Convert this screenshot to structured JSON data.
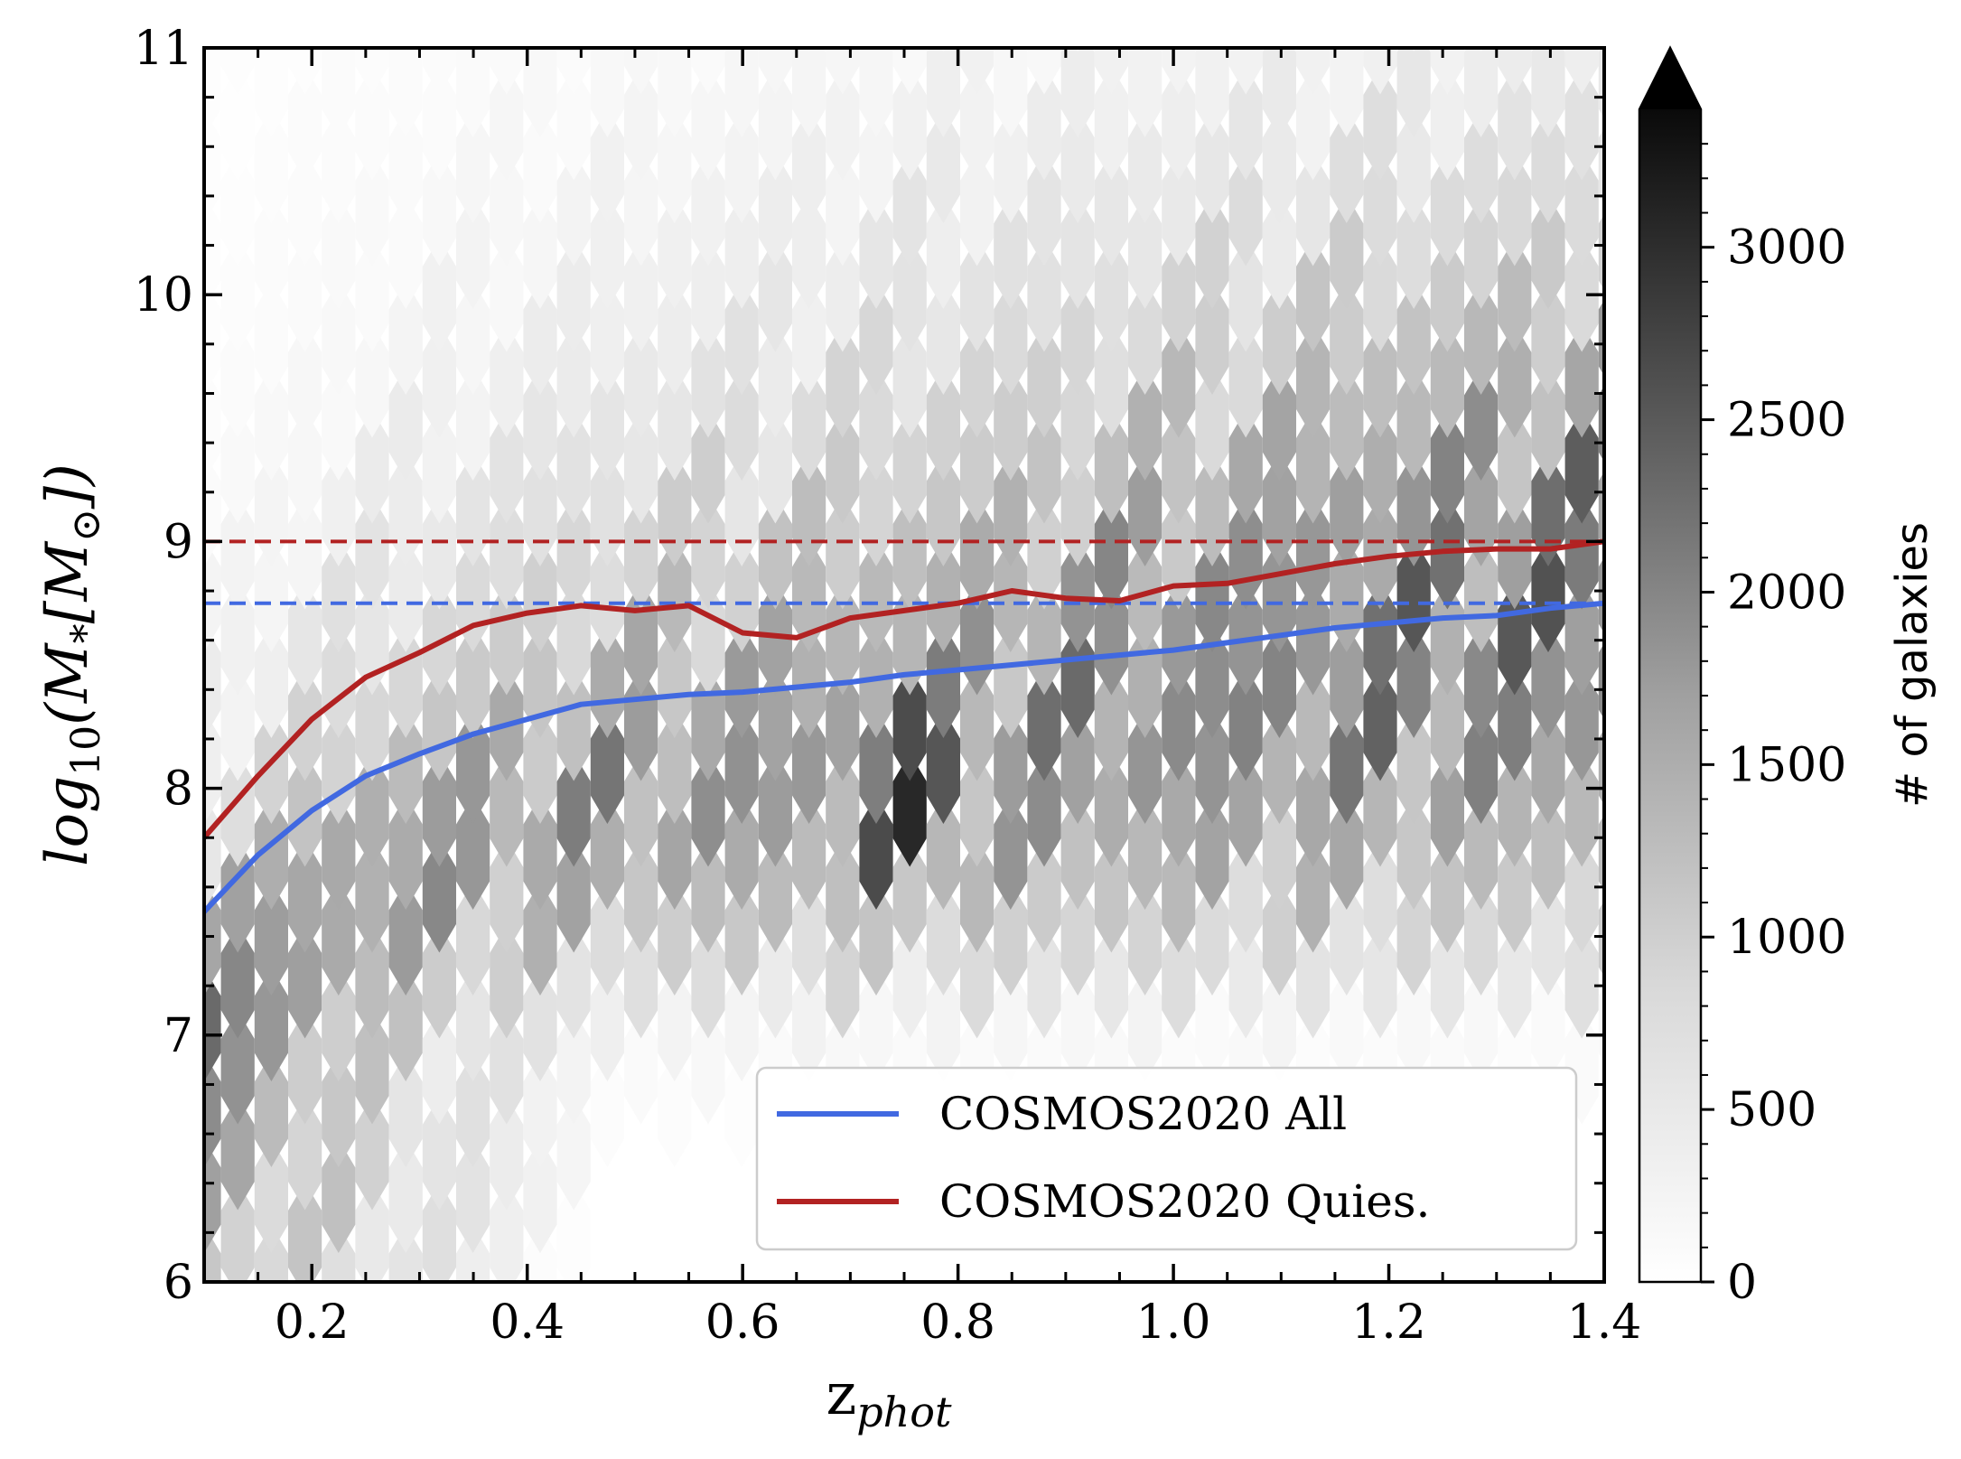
{
  "chart_data": {
    "type": "heatmap",
    "subtype": "hexbin",
    "title": "",
    "xlabel": "z",
    "xlabel_subscript": "phot",
    "ylabel_prefix": "log",
    "ylabel_sub1": "10",
    "ylabel_mid": "(M",
    "ylabel_sub2": "*",
    "ylabel_mid2": "[M",
    "ylabel_sub3": "⊙",
    "ylabel_suffix": "])",
    "xlim": [
      0.1,
      1.4
    ],
    "ylim": [
      6,
      11
    ],
    "x_ticks": [
      "0.2",
      "0.4",
      "0.6",
      "0.8",
      "1.0",
      "1.2",
      "1.4"
    ],
    "x_tick_values": [
      0.2,
      0.4,
      0.6,
      0.8,
      1.0,
      1.2,
      1.4
    ],
    "y_ticks": [
      "6",
      "7",
      "8",
      "9",
      "10",
      "11"
    ],
    "y_tick_values": [
      6,
      7,
      8,
      9,
      10,
      11
    ],
    "colorbar": {
      "label": "# of galaxies",
      "range": [
        0,
        3400
      ],
      "extend": "max",
      "ticks": [
        "0",
        "500",
        "1000",
        "1500",
        "2000",
        "2500",
        "3000"
      ],
      "tick_values": [
        0,
        500,
        1000,
        1500,
        2000,
        2500,
        3000
      ],
      "cmap": "Greys"
    },
    "series": [
      {
        "name": "COSMOS2020 All",
        "color": "#4169e1",
        "style": "solid",
        "x": [
          0.1,
          0.15,
          0.2,
          0.25,
          0.3,
          0.35,
          0.4,
          0.45,
          0.5,
          0.55,
          0.6,
          0.65,
          0.7,
          0.75,
          0.8,
          0.85,
          0.9,
          0.95,
          1.0,
          1.05,
          1.1,
          1.15,
          1.2,
          1.25,
          1.3,
          1.35,
          1.4
        ],
        "y": [
          7.5,
          7.73,
          7.91,
          8.05,
          8.14,
          8.22,
          8.28,
          8.34,
          8.36,
          8.38,
          8.39,
          8.41,
          8.43,
          8.46,
          8.48,
          8.5,
          8.52,
          8.54,
          8.56,
          8.59,
          8.62,
          8.65,
          8.67,
          8.69,
          8.7,
          8.73,
          8.75
        ]
      },
      {
        "name": "COSMOS2020 Quies.",
        "color": "#b22222",
        "style": "solid",
        "x": [
          0.1,
          0.15,
          0.2,
          0.25,
          0.3,
          0.35,
          0.4,
          0.45,
          0.5,
          0.55,
          0.6,
          0.65,
          0.7,
          0.75,
          0.8,
          0.85,
          0.9,
          0.95,
          1.0,
          1.05,
          1.1,
          1.15,
          1.2,
          1.25,
          1.3,
          1.35,
          1.4
        ],
        "y": [
          7.8,
          8.05,
          8.28,
          8.45,
          8.55,
          8.66,
          8.71,
          8.74,
          8.72,
          8.74,
          8.63,
          8.61,
          8.69,
          8.72,
          8.75,
          8.8,
          8.77,
          8.76,
          8.82,
          8.83,
          8.87,
          8.91,
          8.94,
          8.96,
          8.97,
          8.97,
          9.0
        ]
      }
    ],
    "hlines": [
      {
        "y": 9.0,
        "color": "#b22222",
        "style": "dashed"
      },
      {
        "y": 8.75,
        "color": "#4169e1",
        "style": "dashed"
      }
    ],
    "legend": {
      "placement": "lower-right",
      "entries": [
        "COSMOS2020 All",
        "COSMOS2020 Quies."
      ]
    }
  }
}
